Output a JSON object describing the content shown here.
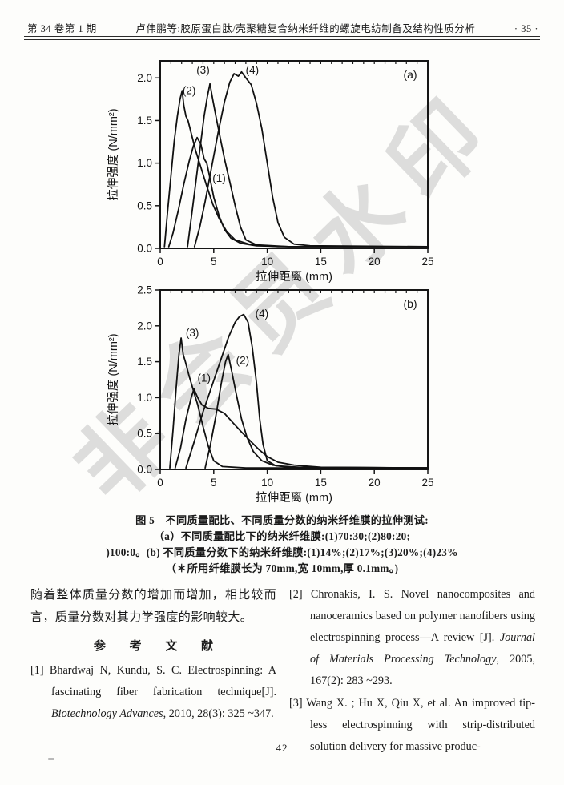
{
  "header": {
    "issue": "第 34 卷第 1 期",
    "title": "卢伟鹏等:胶原蛋白肽/壳聚糖复合纳米纤维的螺旋电纺制备及结构性质分析",
    "page_marker": "· 35 ·"
  },
  "watermark": "非会员水印",
  "chart_data": [
    {
      "type": "line",
      "panel_label": "(a)",
      "xlabel": "拉伸距离 (mm)",
      "ylabel": "拉伸强度 (N/mm²)",
      "xlim": [
        0,
        25
      ],
      "ylim": [
        0,
        2.2
      ],
      "grid": false,
      "legend_position": "none",
      "top_minor_step": 1,
      "xticks": {
        "values": [
          0,
          5,
          10,
          15,
          20,
          25
        ],
        "labels": [
          "0",
          "5",
          "10",
          "15",
          "20",
          "25"
        ]
      },
      "yticks": {
        "values": [
          0,
          0.5,
          1.0,
          1.5,
          2.0
        ],
        "labels": [
          "0.0",
          "0.5",
          "1.0",
          "1.5",
          "2.0"
        ]
      },
      "series": [
        {
          "name": "(1)",
          "label_pos": [
            5.5,
            0.78
          ],
          "points": [
            [
              0.8,
              0.02
            ],
            [
              1.2,
              0.18
            ],
            [
              1.7,
              0.45
            ],
            [
              2.2,
              0.75
            ],
            [
              2.7,
              1.02
            ],
            [
              3.1,
              1.2
            ],
            [
              3.45,
              1.3
            ],
            [
              3.8,
              1.22
            ],
            [
              4.1,
              1.05
            ],
            [
              4.35,
              1.0
            ],
            [
              4.6,
              0.85
            ],
            [
              5.0,
              0.6
            ],
            [
              5.5,
              0.38
            ],
            [
              6.0,
              0.22
            ],
            [
              6.6,
              0.12
            ],
            [
              7.5,
              0.06
            ],
            [
              9,
              0.03
            ],
            [
              12,
              0.02
            ],
            [
              25,
              0.02
            ]
          ]
        },
        {
          "name": "(2)",
          "label_pos": [
            2.7,
            1.81
          ],
          "points": [
            [
              0.4,
              0.02
            ],
            [
              0.7,
              0.45
            ],
            [
              1.0,
              0.85
            ],
            [
              1.3,
              1.25
            ],
            [
              1.6,
              1.55
            ],
            [
              1.85,
              1.75
            ],
            [
              2.05,
              1.85
            ],
            [
              2.2,
              1.68
            ],
            [
              2.4,
              1.55
            ],
            [
              2.6,
              1.5
            ],
            [
              2.9,
              1.35
            ],
            [
              3.3,
              1.15
            ],
            [
              3.8,
              0.95
            ],
            [
              4.3,
              0.75
            ],
            [
              4.9,
              0.52
            ],
            [
              5.5,
              0.35
            ],
            [
              6.2,
              0.2
            ],
            [
              7.0,
              0.1
            ],
            [
              8.5,
              0.04
            ],
            [
              11,
              0.02
            ],
            [
              25,
              0.02
            ]
          ]
        },
        {
          "name": "(3)",
          "label_pos": [
            4.0,
            2.05
          ],
          "points": [
            [
              2.55,
              0.02
            ],
            [
              2.9,
              0.35
            ],
            [
              3.3,
              0.75
            ],
            [
              3.7,
              1.15
            ],
            [
              4.1,
              1.55
            ],
            [
              4.4,
              1.78
            ],
            [
              4.65,
              1.93
            ],
            [
              4.9,
              1.75
            ],
            [
              5.2,
              1.55
            ],
            [
              5.6,
              1.3
            ],
            [
              6.0,
              1.05
            ],
            [
              6.5,
              0.78
            ],
            [
              7.0,
              0.5
            ],
            [
              7.5,
              0.25
            ],
            [
              8.0,
              0.1
            ],
            [
              9.0,
              0.04
            ],
            [
              12,
              0.02
            ],
            [
              25,
              0.02
            ]
          ]
        },
        {
          "name": "(4)",
          "label_pos": [
            8.6,
            2.05
          ],
          "points": [
            [
              3.2,
              0.02
            ],
            [
              3.7,
              0.25
            ],
            [
              4.2,
              0.55
            ],
            [
              4.8,
              0.95
            ],
            [
              5.4,
              1.35
            ],
            [
              6.0,
              1.72
            ],
            [
              6.5,
              1.95
            ],
            [
              6.9,
              2.05
            ],
            [
              7.3,
              2.02
            ],
            [
              7.6,
              2.07
            ],
            [
              8.0,
              2.0
            ],
            [
              8.5,
              1.92
            ],
            [
              9.0,
              1.7
            ],
            [
              9.5,
              1.4
            ],
            [
              10.0,
              1.0
            ],
            [
              10.5,
              0.6
            ],
            [
              11.0,
              0.3
            ],
            [
              11.6,
              0.13
            ],
            [
              12.5,
              0.05
            ],
            [
              14,
              0.03
            ],
            [
              25,
              0.02
            ]
          ]
        }
      ]
    },
    {
      "type": "line",
      "panel_label": "(b)",
      "xlabel": "拉伸距离 (mm)",
      "ylabel": "拉伸强度 (N/mm²)",
      "xlim": [
        0,
        25
      ],
      "ylim": [
        0,
        2.5
      ],
      "grid": false,
      "legend_position": "none",
      "top_minor_step": 1,
      "xticks": {
        "values": [
          0,
          5,
          10,
          15,
          20,
          25
        ],
        "labels": [
          "0",
          "5",
          "10",
          "15",
          "20",
          "25"
        ]
      },
      "yticks": {
        "values": [
          0,
          0.5,
          1.0,
          1.5,
          2.0,
          2.5
        ],
        "labels": [
          "0.0",
          "0.5",
          "1.0",
          "1.5",
          "2.0",
          "2.5"
        ]
      },
      "series": [
        {
          "name": "(1)",
          "label_pos": [
            4.1,
            1.22
          ],
          "points": [
            [
              1.4,
              0.02
            ],
            [
              1.9,
              0.3
            ],
            [
              2.4,
              0.7
            ],
            [
              2.9,
              1.0
            ],
            [
              3.15,
              1.12
            ],
            [
              3.5,
              1.0
            ],
            [
              3.9,
              0.9
            ],
            [
              4.5,
              0.85
            ],
            [
              5.2,
              0.84
            ],
            [
              6.0,
              0.78
            ],
            [
              6.8,
              0.65
            ],
            [
              7.6,
              0.52
            ],
            [
              8.4,
              0.4
            ],
            [
              9.2,
              0.28
            ],
            [
              10.0,
              0.18
            ],
            [
              11.0,
              0.1
            ],
            [
              12.5,
              0.06
            ],
            [
              15,
              0.03
            ],
            [
              25,
              0.02
            ]
          ]
        },
        {
          "name": "(2)",
          "label_pos": [
            7.7,
            1.47
          ],
          "points": [
            [
              4.2,
              0.02
            ],
            [
              4.7,
              0.35
            ],
            [
              5.2,
              0.75
            ],
            [
              5.7,
              1.2
            ],
            [
              6.1,
              1.5
            ],
            [
              6.35,
              1.6
            ],
            [
              6.7,
              1.35
            ],
            [
              7.1,
              1.05
            ],
            [
              7.6,
              0.7
            ],
            [
              8.1,
              0.45
            ],
            [
              8.7,
              0.25
            ],
            [
              9.5,
              0.12
            ],
            [
              10.5,
              0.06
            ],
            [
              12,
              0.03
            ],
            [
              25,
              0.02
            ]
          ]
        },
        {
          "name": "(3)",
          "label_pos": [
            3.0,
            1.85
          ],
          "points": [
            [
              0.9,
              0.02
            ],
            [
              1.2,
              0.55
            ],
            [
              1.5,
              1.15
            ],
            [
              1.75,
              1.6
            ],
            [
              1.95,
              1.83
            ],
            [
              2.15,
              1.6
            ],
            [
              2.35,
              1.5
            ],
            [
              2.7,
              1.3
            ],
            [
              3.1,
              1.1
            ],
            [
              3.5,
              0.9
            ],
            [
              4.0,
              0.6
            ],
            [
              4.5,
              0.32
            ],
            [
              5.0,
              0.12
            ],
            [
              5.8,
              0.04
            ],
            [
              8,
              0.02
            ],
            [
              25,
              0.02
            ]
          ]
        },
        {
          "name": "(4)",
          "label_pos": [
            9.5,
            2.12
          ],
          "points": [
            [
              2.4,
              0.02
            ],
            [
              3.2,
              0.4
            ],
            [
              4.0,
              0.8
            ],
            [
              4.8,
              1.15
            ],
            [
              5.6,
              1.5
            ],
            [
              6.4,
              1.85
            ],
            [
              7.0,
              2.05
            ],
            [
              7.4,
              2.13
            ],
            [
              7.8,
              2.16
            ],
            [
              8.2,
              2.05
            ],
            [
              8.6,
              1.7
            ],
            [
              9.0,
              1.2
            ],
            [
              9.3,
              0.7
            ],
            [
              9.6,
              0.35
            ],
            [
              10.0,
              0.12
            ],
            [
              10.8,
              0.05
            ],
            [
              13,
              0.03
            ],
            [
              25,
              0.02
            ]
          ]
        }
      ]
    }
  ],
  "caption": {
    "line1": "图 5　不同质量配比、不同质量分数的纳米纤维膜的拉伸测试:",
    "line2": "（a）不同质量配比下的纳米纤维膜:(1)70:30;(2)80:20;",
    "line3": ")100:0。(b) 不同质量分数下的纳米纤维膜:(1)14%;(2)17%;(3)20%;(4)23%",
    "line4": "（＊所用纤维膜长为 70mm,宽 10mm,厚 0.1mm。)"
  },
  "body": {
    "paragraph": "随着整体质量分数的增加而增加，相比较而言，质量分数对其力学强度的影响较大。",
    "references_heading": "参 考 文 献",
    "references": [
      {
        "pre": "[1] Bhardwaj N, Kundu, S. C. Electrospinning: A fascinating fiber fabrication technique[J]. ",
        "italic": "Biotechnology Advances",
        "post": ", 2010, 28(3): 325 ~347."
      },
      {
        "pre": "[2] Chronakis, I. S. Novel nanocomposites and nanoceramics based on polymer nanofibers using electrospinning process—A review [J]. ",
        "italic": "Journal of Materials Processing Technology",
        "post": ", 2005, 167(2): 283 ~293."
      },
      {
        "pre": "[3] Wang X. ; Hu X, Qiu X, et al. An improved tip-less electrospinning with strip-distributed solution delivery for massive produc-",
        "italic": "",
        "post": ""
      }
    ]
  },
  "footer": {
    "page_number": "42"
  }
}
